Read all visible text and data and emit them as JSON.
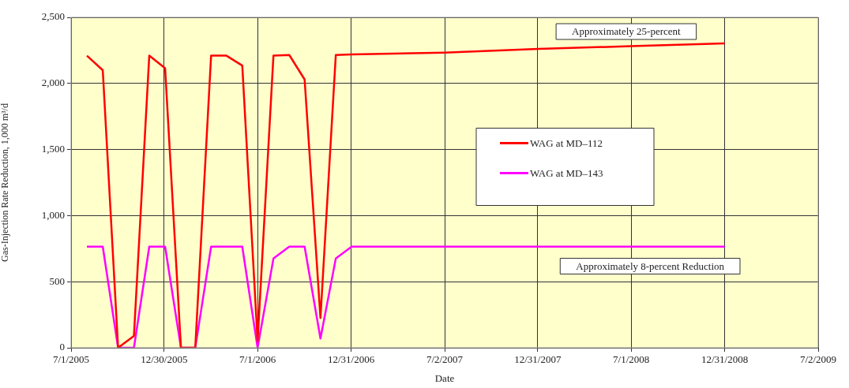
{
  "chart_data": {
    "type": "line",
    "xlabel": "Date",
    "ylabel": "Gas-Injection Rate Reduction, 1,000 m³/d",
    "x": [
      "2005-08-01",
      "2005-09-01",
      "2005-10-01",
      "2005-11-01",
      "2005-12-01",
      "2006-01-01",
      "2006-02-01",
      "2006-03-01",
      "2006-04-01",
      "2006-05-01",
      "2006-06-01",
      "2006-07-01",
      "2006-08-01",
      "2006-09-01",
      "2006-10-01",
      "2006-11-01",
      "2006-12-01",
      "2007-01-01",
      "2007-07-01",
      "2008-01-01",
      "2008-07-01",
      "2008-12-31"
    ],
    "series": [
      {
        "name": "WAG at MD–112",
        "color": "#ff0000",
        "values": [
          2210,
          2100,
          0,
          90,
          2210,
          2115,
          0,
          0,
          2210,
          2210,
          2135,
          50,
          2210,
          2215,
          2030,
          225,
          2215,
          2220,
          2233,
          2261,
          2282,
          2303
        ]
      },
      {
        "name": "WAG at MD–143",
        "color": "#ff00ff",
        "values": [
          765,
          765,
          0,
          0,
          765,
          765,
          0,
          0,
          765,
          765,
          765,
          0,
          675,
          765,
          765,
          70,
          675,
          765,
          765,
          765,
          765,
          765
        ]
      }
    ],
    "xlim": [
      "2005-07-01",
      "2009-07-02"
    ],
    "xticks": [
      {
        "value": "2005-07-01",
        "label": "7/1/2005"
      },
      {
        "value": "2005-12-30",
        "label": "12/30/2005"
      },
      {
        "value": "2006-07-01",
        "label": "7/1/2006"
      },
      {
        "value": "2006-12-31",
        "label": "12/31/2006"
      },
      {
        "value": "2007-07-02",
        "label": "7/2/2007"
      },
      {
        "value": "2007-12-31",
        "label": "12/31/2007"
      },
      {
        "value": "2008-07-01",
        "label": "7/1/2008"
      },
      {
        "value": "2008-12-31",
        "label": "12/31/2008"
      },
      {
        "value": "2009-07-02",
        "label": "7/2/2009"
      }
    ],
    "ylim": [
      0,
      2500
    ],
    "yticks": [
      {
        "value": 0,
        "label": "0"
      },
      {
        "value": 500,
        "label": "500"
      },
      {
        "value": 1000,
        "label": "1,000"
      },
      {
        "value": 1500,
        "label": "1,500"
      },
      {
        "value": 2000,
        "label": "2,000"
      },
      {
        "value": 2500,
        "label": "2,500"
      }
    ],
    "grid": true,
    "legend": "center",
    "marker": "none",
    "line_style": "solid",
    "annotations": [
      "Approximately 25-percent",
      "Approximately 8-percent Reduction"
    ]
  }
}
